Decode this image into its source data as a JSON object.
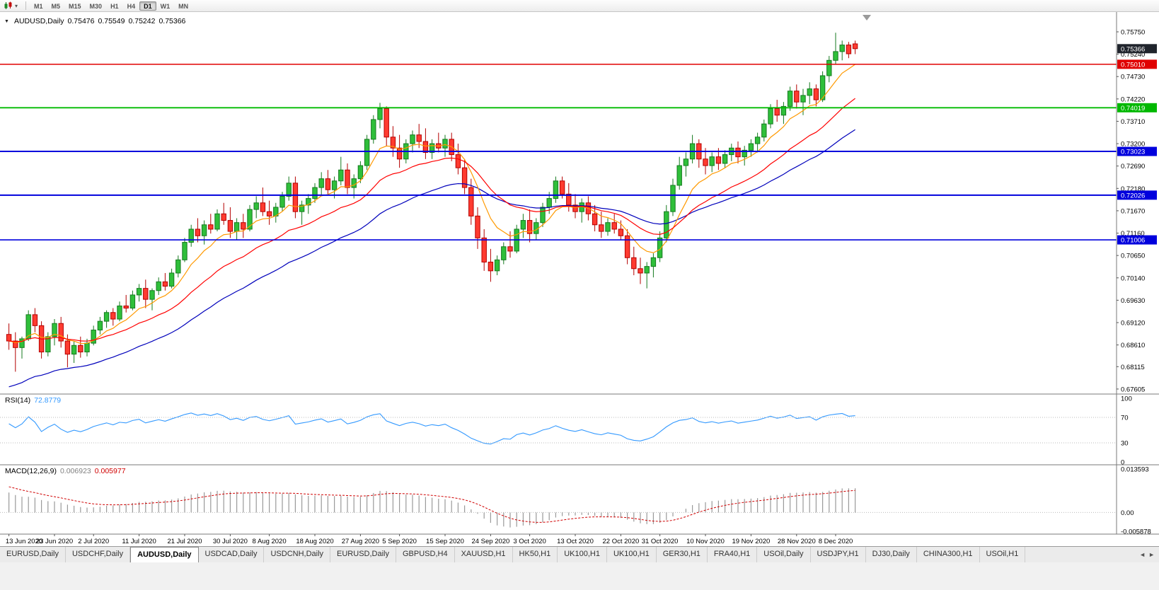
{
  "toolbar": {
    "timeframes": [
      {
        "label": "M1",
        "active": false
      },
      {
        "label": "M5",
        "active": false
      },
      {
        "label": "M15",
        "active": false
      },
      {
        "label": "M30",
        "active": false
      },
      {
        "label": "H1",
        "active": false
      },
      {
        "label": "H4",
        "active": false
      },
      {
        "label": "D1",
        "active": true
      },
      {
        "label": "W1",
        "active": false
      },
      {
        "label": "MN",
        "active": false
      }
    ]
  },
  "chart": {
    "title": {
      "symbol": "AUDUSD,Daily",
      "open": "0.75476",
      "high": "0.75549",
      "low": "0.75242",
      "close": "0.75366"
    }
  },
  "rsi_panel": {
    "label": "RSI(14)",
    "value": "72.8779"
  },
  "macd_panel": {
    "label": "MACD(12,26,9)",
    "value_main": "0.006923",
    "value_signal": "0.005977"
  },
  "tabs": [
    {
      "label": "EURUSD,Daily",
      "active": false
    },
    {
      "label": "USDCHF,Daily",
      "active": false
    },
    {
      "label": "AUDUSD,Daily",
      "active": true
    },
    {
      "label": "USDCAD,Daily",
      "active": false
    },
    {
      "label": "USDCNH,Daily",
      "active": false
    },
    {
      "label": "EURUSD,Daily",
      "active": false
    },
    {
      "label": "GBPUSD,H4",
      "active": false
    },
    {
      "label": "XAUUSD,H1",
      "active": false
    },
    {
      "label": "HK50,H1",
      "active": false
    },
    {
      "label": "UK100,H1",
      "active": false
    },
    {
      "label": "UK100,H1",
      "active": false
    },
    {
      "label": "GER30,H1",
      "active": false
    },
    {
      "label": "FRA40,H1",
      "active": false
    },
    {
      "label": "USOil,Daily",
      "active": false
    },
    {
      "label": "USDJPY,H1",
      "active": false
    },
    {
      "label": "DJ30,Daily",
      "active": false
    },
    {
      "label": "CHINA300,H1",
      "active": false
    },
    {
      "label": "USOil,H1",
      "active": false
    }
  ],
  "tab_arrows": {
    "left": "◄",
    "right": "►"
  },
  "chart_data": {
    "type": "candlestick",
    "symbol": "AUDUSD",
    "timeframe": "Daily",
    "last_ohlc": {
      "open": 0.75476,
      "high": 0.75549,
      "low": 0.75242,
      "close": 0.75366
    },
    "style": {
      "up_fill": "#2fbf3a",
      "up_stroke": "#157a1f",
      "down_fill": "#ff3b30",
      "down_stroke": "#b40000"
    },
    "y_axis_labels": [
      "0.75750",
      "0.75240",
      "0.74730",
      "0.74220",
      "0.73710",
      "0.73200",
      "0.72690",
      "0.72180",
      "0.71670",
      "0.71160",
      "0.70650",
      "0.70140",
      "0.69630",
      "0.69120",
      "0.68610",
      "0.68115",
      "0.67605"
    ],
    "x_axis_labels": [
      {
        "t": "13 Jun 2020",
        "i": 0
      },
      {
        "t": "23 Jun 2020",
        "i": 7
      },
      {
        "t": "2 Jul 2020",
        "i": 13
      },
      {
        "t": "11 Jul 2020",
        "i": 20
      },
      {
        "t": "21 Jul 2020",
        "i": 27
      },
      {
        "t": "30 Jul 2020",
        "i": 34
      },
      {
        "t": "8 Aug 2020",
        "i": 40
      },
      {
        "t": "18 Aug 2020",
        "i": 47
      },
      {
        "t": "27 Aug 2020",
        "i": 54
      },
      {
        "t": "5 Sep 2020",
        "i": 60
      },
      {
        "t": "15 Sep 2020",
        "i": 67
      },
      {
        "t": "24 Sep 2020",
        "i": 74
      },
      {
        "t": "3 Oct 2020",
        "i": 80
      },
      {
        "t": "13 Oct 2020",
        "i": 87
      },
      {
        "t": "22 Oct 2020",
        "i": 94
      },
      {
        "t": "31 Oct 2020",
        "i": 100
      },
      {
        "t": "10 Nov 2020",
        "i": 107
      },
      {
        "t": "19 Nov 2020",
        "i": 114
      },
      {
        "t": "28 Nov 2020",
        "i": 121
      },
      {
        "t": "8 Dec 2020",
        "i": 127
      }
    ],
    "horizontal_lines": [
      {
        "price": 0.7501,
        "color": "#e00000",
        "w": 1.4
      },
      {
        "price": 0.74019,
        "color": "#00bb00",
        "w": 1.8
      },
      {
        "price": 0.73023,
        "color": "#0000dd",
        "w": 2
      },
      {
        "price": 0.72026,
        "color": "#0000dd",
        "w": 2
      },
      {
        "price": 0.71006,
        "color": "#0000dd",
        "w": 1.6
      }
    ],
    "price_badges": [
      {
        "text": "0.75366",
        "price": 0.75366,
        "bg": "#20242c"
      },
      {
        "text": "0.75010",
        "price": 0.7501,
        "bg": "#e00000"
      },
      {
        "text": "0.74019",
        "price": 0.74019,
        "bg": "#00b800"
      },
      {
        "text": "0.73023",
        "price": 0.73023,
        "bg": "#0000dd"
      },
      {
        "text": "0.72026",
        "price": 0.72026,
        "bg": "#0000dd"
      },
      {
        "text": "0.71006",
        "price": 0.71006,
        "bg": "#0000dd"
      }
    ],
    "moving_averages": [
      {
        "name": "slow-ma",
        "type": "slow",
        "alpha": 0.05,
        "seed": 0.676,
        "color": "#0000bb"
      },
      {
        "name": "fast-ma",
        "type": "ema",
        "period": 8,
        "color": "#ff9900"
      },
      {
        "name": "medium-ma",
        "type": "ema",
        "period": 21,
        "color": "#ff0000"
      }
    ],
    "rsi": {
      "period": 14,
      "current": 72.8779,
      "color": "#3399ff",
      "range": [
        0,
        100
      ],
      "levels": [
        70,
        30
      ],
      "axis_labels": [
        "100",
        "70",
        "30",
        "0"
      ]
    },
    "macd": {
      "fast": 12,
      "slow": 26,
      "signal": 9,
      "current_main": 0.006923,
      "current_signal": 0.005977,
      "range": [
        -0.005878,
        0.013593
      ],
      "axis_labels": [
        "0.013593",
        "0.00",
        "-0.005878"
      ]
    },
    "candles": [
      [
        0.6885,
        0.691,
        0.685,
        0.687
      ],
      [
        0.687,
        0.689,
        0.68,
        0.6855
      ],
      [
        0.6855,
        0.688,
        0.683,
        0.6875
      ],
      [
        0.6875,
        0.694,
        0.687,
        0.693
      ],
      [
        0.693,
        0.6945,
        0.689,
        0.6905
      ],
      [
        0.6905,
        0.6915,
        0.683,
        0.6845
      ],
      [
        0.6845,
        0.689,
        0.6835,
        0.688
      ],
      [
        0.688,
        0.692,
        0.686,
        0.691
      ],
      [
        0.691,
        0.6925,
        0.6855,
        0.687
      ],
      [
        0.687,
        0.6885,
        0.681,
        0.684
      ],
      [
        0.684,
        0.687,
        0.682,
        0.686
      ],
      [
        0.686,
        0.688,
        0.6832,
        0.6845
      ],
      [
        0.6845,
        0.6875,
        0.6835,
        0.6865
      ],
      [
        0.6865,
        0.6905,
        0.686,
        0.6895
      ],
      [
        0.6895,
        0.6925,
        0.6885,
        0.6915
      ],
      [
        0.6915,
        0.694,
        0.69,
        0.6935
      ],
      [
        0.6935,
        0.6945,
        0.6905,
        0.692
      ],
      [
        0.692,
        0.696,
        0.6915,
        0.695
      ],
      [
        0.695,
        0.6975,
        0.6935,
        0.6945
      ],
      [
        0.6945,
        0.6985,
        0.694,
        0.6975
      ],
      [
        0.6975,
        0.7,
        0.696,
        0.699
      ],
      [
        0.699,
        0.701,
        0.6945,
        0.6965
      ],
      [
        0.6965,
        0.699,
        0.694,
        0.6985
      ],
      [
        0.6985,
        0.7015,
        0.6975,
        0.7005
      ],
      [
        0.7005,
        0.7025,
        0.6985,
        0.6995
      ],
      [
        0.6995,
        0.7035,
        0.699,
        0.7025
      ],
      [
        0.7025,
        0.7065,
        0.7015,
        0.7055
      ],
      [
        0.7055,
        0.7105,
        0.705,
        0.7095
      ],
      [
        0.7095,
        0.7135,
        0.7085,
        0.7125
      ],
      [
        0.7125,
        0.715,
        0.7095,
        0.711
      ],
      [
        0.711,
        0.7145,
        0.709,
        0.7135
      ],
      [
        0.7135,
        0.716,
        0.7115,
        0.7125
      ],
      [
        0.7125,
        0.717,
        0.712,
        0.716
      ],
      [
        0.716,
        0.7185,
        0.7135,
        0.7145
      ],
      [
        0.7145,
        0.7175,
        0.7105,
        0.712
      ],
      [
        0.712,
        0.715,
        0.71,
        0.714
      ],
      [
        0.714,
        0.716,
        0.7105,
        0.7125
      ],
      [
        0.7125,
        0.718,
        0.712,
        0.717
      ],
      [
        0.717,
        0.72,
        0.715,
        0.7185
      ],
      [
        0.7185,
        0.722,
        0.7155,
        0.7165
      ],
      [
        0.7165,
        0.719,
        0.7135,
        0.7155
      ],
      [
        0.7155,
        0.7185,
        0.714,
        0.7175
      ],
      [
        0.7175,
        0.721,
        0.7165,
        0.72
      ],
      [
        0.72,
        0.7245,
        0.719,
        0.723
      ],
      [
        0.723,
        0.7245,
        0.715,
        0.7165
      ],
      [
        0.7165,
        0.719,
        0.7135,
        0.718
      ],
      [
        0.718,
        0.7205,
        0.716,
        0.7195
      ],
      [
        0.7195,
        0.723,
        0.7185,
        0.722
      ],
      [
        0.722,
        0.7255,
        0.72,
        0.724
      ],
      [
        0.724,
        0.726,
        0.7205,
        0.7215
      ],
      [
        0.7215,
        0.7245,
        0.7195,
        0.7235
      ],
      [
        0.7235,
        0.729,
        0.7225,
        0.726
      ],
      [
        0.726,
        0.7275,
        0.7205,
        0.722
      ],
      [
        0.722,
        0.725,
        0.7195,
        0.724
      ],
      [
        0.724,
        0.728,
        0.723,
        0.727
      ],
      [
        0.727,
        0.734,
        0.726,
        0.733
      ],
      [
        0.733,
        0.7385,
        0.732,
        0.7375
      ],
      [
        0.7375,
        0.7413,
        0.7355,
        0.74
      ],
      [
        0.74,
        0.7405,
        0.7315,
        0.7335
      ],
      [
        0.7335,
        0.736,
        0.729,
        0.731
      ],
      [
        0.731,
        0.734,
        0.7265,
        0.7285
      ],
      [
        0.7285,
        0.733,
        0.7275,
        0.732
      ],
      [
        0.732,
        0.735,
        0.73,
        0.734
      ],
      [
        0.734,
        0.7365,
        0.731,
        0.7325
      ],
      [
        0.7325,
        0.7355,
        0.7285,
        0.73
      ],
      [
        0.73,
        0.733,
        0.7285,
        0.732
      ],
      [
        0.732,
        0.7345,
        0.73,
        0.731
      ],
      [
        0.731,
        0.734,
        0.729,
        0.733
      ],
      [
        0.733,
        0.7345,
        0.728,
        0.7295
      ],
      [
        0.7295,
        0.732,
        0.725,
        0.7265
      ],
      [
        0.7265,
        0.7285,
        0.7205,
        0.722
      ],
      [
        0.722,
        0.724,
        0.7135,
        0.7155
      ],
      [
        0.7155,
        0.7175,
        0.708,
        0.7105
      ],
      [
        0.7105,
        0.7125,
        0.703,
        0.705
      ],
      [
        0.705,
        0.708,
        0.7005,
        0.703
      ],
      [
        0.703,
        0.7065,
        0.702,
        0.7055
      ],
      [
        0.7055,
        0.7095,
        0.7045,
        0.7085
      ],
      [
        0.7085,
        0.712,
        0.706,
        0.7075
      ],
      [
        0.7075,
        0.7135,
        0.707,
        0.7125
      ],
      [
        0.7125,
        0.716,
        0.7105,
        0.7145
      ],
      [
        0.7145,
        0.717,
        0.7095,
        0.7115
      ],
      [
        0.7115,
        0.715,
        0.71,
        0.714
      ],
      [
        0.714,
        0.7185,
        0.713,
        0.7175
      ],
      [
        0.7175,
        0.721,
        0.716,
        0.7195
      ],
      [
        0.7195,
        0.7245,
        0.7185,
        0.7235
      ],
      [
        0.7235,
        0.7245,
        0.7195,
        0.7205
      ],
      [
        0.7205,
        0.723,
        0.7165,
        0.718
      ],
      [
        0.718,
        0.7205,
        0.715,
        0.7165
      ],
      [
        0.7165,
        0.7195,
        0.714,
        0.7185
      ],
      [
        0.7185,
        0.72,
        0.7145,
        0.716
      ],
      [
        0.716,
        0.718,
        0.712,
        0.7135
      ],
      [
        0.7135,
        0.7165,
        0.7105,
        0.712
      ],
      [
        0.712,
        0.715,
        0.711,
        0.714
      ],
      [
        0.714,
        0.716,
        0.7115,
        0.7125
      ],
      [
        0.7125,
        0.7145,
        0.71,
        0.711
      ],
      [
        0.711,
        0.7125,
        0.7045,
        0.706
      ],
      [
        0.706,
        0.7085,
        0.702,
        0.7035
      ],
      [
        0.7035,
        0.706,
        0.7,
        0.7025
      ],
      [
        0.7025,
        0.705,
        0.699,
        0.704
      ],
      [
        0.704,
        0.707,
        0.7015,
        0.706
      ],
      [
        0.706,
        0.712,
        0.705,
        0.7105
      ],
      [
        0.7105,
        0.718,
        0.7095,
        0.7165
      ],
      [
        0.7165,
        0.724,
        0.7155,
        0.7225
      ],
      [
        0.7225,
        0.729,
        0.7215,
        0.727
      ],
      [
        0.727,
        0.73,
        0.7245,
        0.7285
      ],
      [
        0.7285,
        0.734,
        0.7275,
        0.732
      ],
      [
        0.732,
        0.733,
        0.7265,
        0.7285
      ],
      [
        0.7285,
        0.731,
        0.725,
        0.727
      ],
      [
        0.727,
        0.73,
        0.7255,
        0.729
      ],
      [
        0.729,
        0.731,
        0.726,
        0.7275
      ],
      [
        0.7275,
        0.7305,
        0.7265,
        0.7295
      ],
      [
        0.7295,
        0.732,
        0.728,
        0.731
      ],
      [
        0.731,
        0.7325,
        0.7275,
        0.729
      ],
      [
        0.729,
        0.7315,
        0.727,
        0.7305
      ],
      [
        0.7305,
        0.733,
        0.729,
        0.732
      ],
      [
        0.732,
        0.7345,
        0.73,
        0.7335
      ],
      [
        0.7335,
        0.7375,
        0.7325,
        0.7365
      ],
      [
        0.7365,
        0.741,
        0.7355,
        0.74
      ],
      [
        0.74,
        0.742,
        0.737,
        0.7385
      ],
      [
        0.7385,
        0.7415,
        0.7365,
        0.7405
      ],
      [
        0.7405,
        0.745,
        0.7395,
        0.744
      ],
      [
        0.744,
        0.7455,
        0.74,
        0.7415
      ],
      [
        0.7415,
        0.7445,
        0.7385,
        0.743
      ],
      [
        0.743,
        0.746,
        0.741,
        0.7445
      ],
      [
        0.7445,
        0.7455,
        0.7405,
        0.742
      ],
      [
        0.742,
        0.7485,
        0.7415,
        0.7475
      ],
      [
        0.7475,
        0.752,
        0.746,
        0.751
      ],
      [
        0.751,
        0.7573,
        0.75,
        0.753
      ],
      [
        0.753,
        0.7555,
        0.751,
        0.7545
      ],
      [
        0.7545,
        0.7552,
        0.7515,
        0.7525
      ],
      [
        0.75476,
        0.75549,
        0.75242,
        0.75366
      ]
    ]
  }
}
